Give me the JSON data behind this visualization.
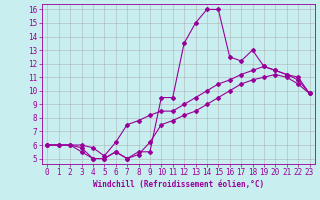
{
  "xlabel": "Windchill (Refroidissement éolien,°C)",
  "background_color": "#c8eef0",
  "line_color": "#990099",
  "grid_color": "#b0b0b0",
  "xlim": [
    -0.5,
    23.5
  ],
  "ylim": [
    4.6,
    16.4
  ],
  "xticks": [
    0,
    1,
    2,
    3,
    4,
    5,
    6,
    7,
    8,
    9,
    10,
    11,
    12,
    13,
    14,
    15,
    16,
    17,
    18,
    19,
    20,
    21,
    22,
    23
  ],
  "yticks": [
    5,
    6,
    7,
    8,
    9,
    10,
    11,
    12,
    13,
    14,
    15,
    16
  ],
  "line1_x": [
    0,
    1,
    2,
    3,
    4,
    5,
    6,
    7,
    8,
    9,
    10,
    11,
    12,
    13,
    14,
    15,
    16,
    17,
    18,
    19,
    20,
    21,
    22,
    23
  ],
  "line1_y": [
    6.0,
    6.0,
    6.0,
    5.8,
    5.0,
    5.0,
    5.5,
    5.0,
    5.5,
    5.5,
    9.5,
    9.5,
    13.5,
    15.0,
    16.0,
    16.0,
    12.5,
    12.2,
    13.0,
    11.8,
    11.5,
    11.2,
    11.0,
    9.8
  ],
  "line2_x": [
    0,
    3,
    4,
    5,
    6,
    7,
    8,
    9,
    10,
    11,
    12,
    13,
    14,
    15,
    16,
    17,
    18,
    19,
    20,
    21,
    22,
    23
  ],
  "line2_y": [
    6.0,
    6.0,
    5.8,
    5.2,
    6.2,
    7.5,
    7.8,
    8.2,
    8.5,
    8.5,
    9.0,
    9.5,
    10.0,
    10.5,
    10.8,
    11.2,
    11.5,
    11.8,
    11.5,
    11.2,
    10.8,
    9.8
  ],
  "line3_x": [
    0,
    1,
    2,
    3,
    4,
    5,
    6,
    7,
    8,
    9,
    10,
    11,
    12,
    13,
    14,
    15,
    16,
    17,
    18,
    19,
    20,
    21,
    22,
    23
  ],
  "line3_y": [
    6.0,
    6.0,
    6.0,
    5.5,
    5.0,
    5.0,
    5.5,
    5.0,
    5.3,
    6.2,
    7.5,
    7.8,
    8.2,
    8.5,
    9.0,
    9.5,
    10.0,
    10.5,
    10.8,
    11.0,
    11.2,
    11.0,
    10.5,
    9.8
  ],
  "tick_fontsize": 5.5,
  "xlabel_fontsize": 5.5,
  "marker_size": 2.0,
  "line_width": 0.8
}
